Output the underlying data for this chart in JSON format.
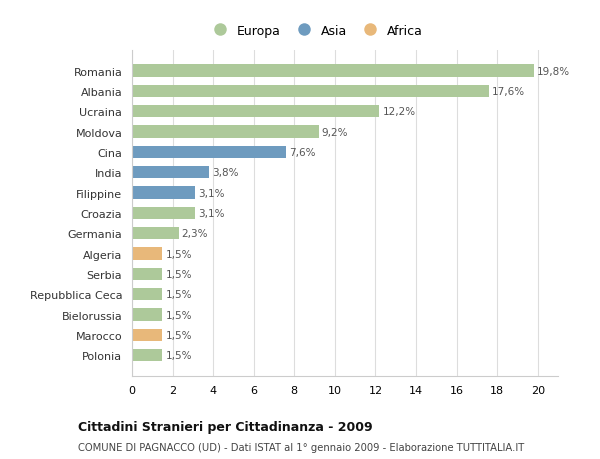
{
  "categories": [
    "Romania",
    "Albania",
    "Ucraina",
    "Moldova",
    "Cina",
    "India",
    "Filippine",
    "Croazia",
    "Germania",
    "Algeria",
    "Serbia",
    "Repubblica Ceca",
    "Bielorussia",
    "Marocco",
    "Polonia"
  ],
  "values": [
    19.8,
    17.6,
    12.2,
    9.2,
    7.6,
    3.8,
    3.1,
    3.1,
    2.3,
    1.5,
    1.5,
    1.5,
    1.5,
    1.5,
    1.5
  ],
  "labels": [
    "19,8%",
    "17,6%",
    "12,2%",
    "9,2%",
    "7,6%",
    "3,8%",
    "3,1%",
    "3,1%",
    "2,3%",
    "1,5%",
    "1,5%",
    "1,5%",
    "1,5%",
    "1,5%",
    "1,5%"
  ],
  "continents": [
    "Europa",
    "Europa",
    "Europa",
    "Europa",
    "Asia",
    "Asia",
    "Asia",
    "Europa",
    "Europa",
    "Africa",
    "Europa",
    "Europa",
    "Europa",
    "Africa",
    "Europa"
  ],
  "colors": {
    "Europa": "#adc99a",
    "Asia": "#6e9bbf",
    "Africa": "#e8b87a"
  },
  "legend_colors": {
    "Europa": "#adc99a",
    "Asia": "#6e9bbf",
    "Africa": "#e8b87a"
  },
  "xlim": [
    0,
    21
  ],
  "xticks": [
    0,
    2,
    4,
    6,
    8,
    10,
    12,
    14,
    16,
    18,
    20
  ],
  "title": "Cittadini Stranieri per Cittadinanza - 2009",
  "subtitle": "COMUNE DI PAGNACCO (UD) - Dati ISTAT al 1° gennaio 2009 - Elaborazione TUTTITALIA.IT",
  "bg_color": "#ffffff",
  "grid_color": "#dddddd",
  "bar_height": 0.6
}
